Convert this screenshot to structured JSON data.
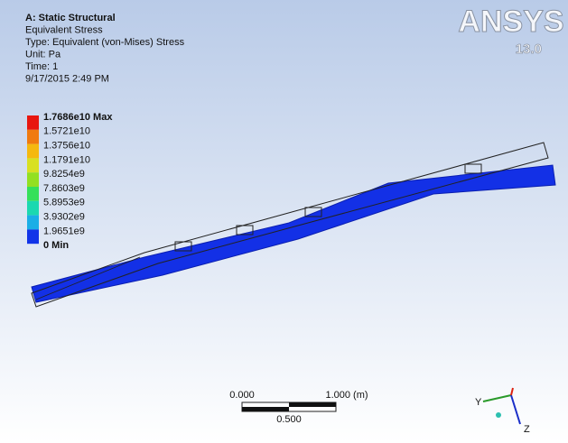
{
  "header": {
    "lines": [
      "A: Static Structural",
      "Equivalent Stress",
      "Type: Equivalent (von-Mises) Stress",
      "Unit: Pa",
      "Time: 1",
      "9/17/2015 2:49 PM"
    ]
  },
  "logo": {
    "brand": "ANSYS",
    "version": "13.0"
  },
  "legend": {
    "labels": [
      "1.7686e10 Max",
      "1.5721e10",
      "1.3756e10",
      "1.1791e10",
      "9.8254e9",
      "7.8603e9",
      "5.8953e9",
      "3.9302e9",
      "1.9651e9",
      "0 Min"
    ]
  },
  "scale_bar": {
    "start": "0.000",
    "end": "1.000 (m)",
    "mid": "0.500"
  },
  "triad": {
    "y": "Y",
    "z": "Z"
  }
}
